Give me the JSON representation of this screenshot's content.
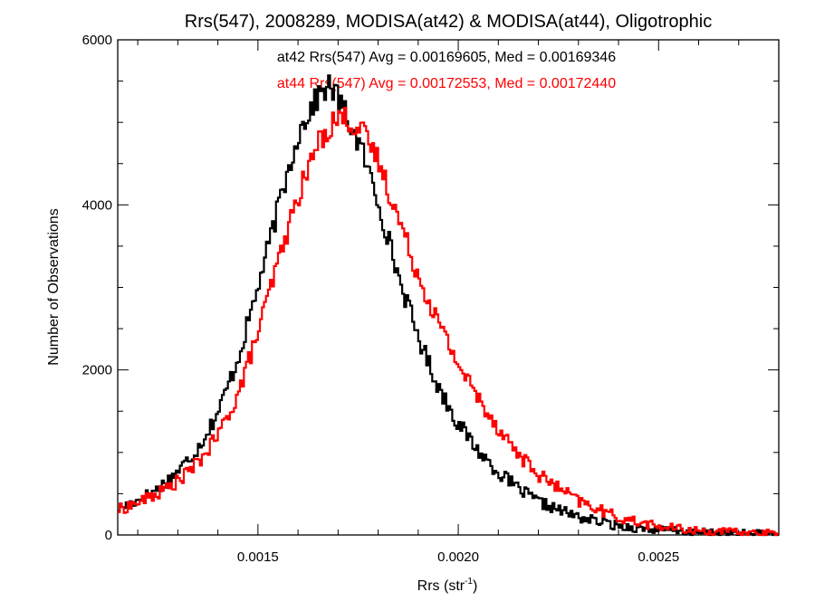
{
  "chart_data": {
    "type": "line",
    "title": "Rrs(547), 2008289, MODISA(at42) & MODISA(at44), Oligotrophic",
    "xlabel_main": "Rrs (str",
    "xlabel_sup": "-1",
    "xlabel_close": ")",
    "ylabel": "Number of Observations",
    "xlim": [
      0.00115,
      0.0028
    ],
    "ylim": [
      0,
      6000
    ],
    "x_ticks": [
      0.0015,
      0.002,
      0.0025
    ],
    "x_tick_labels": [
      "0.0015",
      "0.0020",
      "0.0025"
    ],
    "y_ticks": [
      0,
      2000,
      4000,
      6000
    ],
    "y_tick_labels": [
      "0",
      "2000",
      "4000",
      "6000"
    ],
    "grid": false,
    "legend": "none",
    "annotations": [
      {
        "text": "at42 Rrs(547) Avg = 0.00169605, Med = 0.00169346",
        "color": "#000000"
      },
      {
        "text": "at44 Rrs(547) Avg = 0.00172553, Med = 0.00172440",
        "color": "#ff0000"
      }
    ],
    "series": [
      {
        "color": "#000000",
        "x": [
          0.00115,
          0.0012,
          0.00125,
          0.0013,
          0.00135,
          0.0014,
          0.00145,
          0.0015,
          0.00155,
          0.0016,
          0.00163,
          0.00166,
          0.00168,
          0.0017,
          0.00173,
          0.00176,
          0.0018,
          0.00185,
          0.0019,
          0.00195,
          0.002,
          0.00205,
          0.0021,
          0.00215,
          0.0022,
          0.0023,
          0.0024,
          0.0025,
          0.0026,
          0.0027,
          0.0028
        ],
        "values": [
          320,
          420,
          560,
          770,
          1050,
          1480,
          2130,
          3000,
          3950,
          4850,
          5150,
          5380,
          5440,
          5300,
          4980,
          4650,
          4050,
          3150,
          2400,
          1800,
          1350,
          1020,
          760,
          560,
          400,
          215,
          110,
          60,
          35,
          20,
          15
        ]
      },
      {
        "color": "#ff0000",
        "x": [
          0.00115,
          0.0012,
          0.00125,
          0.0013,
          0.00135,
          0.0014,
          0.00145,
          0.0015,
          0.00155,
          0.0016,
          0.00165,
          0.00168,
          0.0017,
          0.00173,
          0.00176,
          0.0018,
          0.00185,
          0.0019,
          0.00195,
          0.002,
          0.00205,
          0.0021,
          0.00215,
          0.0022,
          0.0023,
          0.0024,
          0.0025,
          0.0026,
          0.0027,
          0.0028
        ],
        "values": [
          300,
          390,
          500,
          650,
          870,
          1200,
          1700,
          2450,
          3300,
          4100,
          4750,
          4950,
          5080,
          5020,
          4880,
          4550,
          3850,
          3150,
          2580,
          2070,
          1660,
          1300,
          980,
          730,
          410,
          210,
          100,
          50,
          30,
          20
        ]
      }
    ]
  }
}
